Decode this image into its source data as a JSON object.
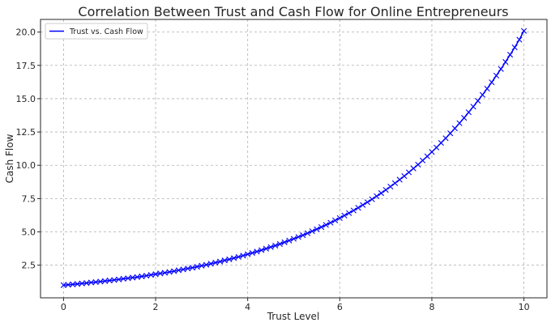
{
  "chart_data": {
    "type": "line",
    "title": "Correlation Between Trust and Cash Flow for Online Entrepreneurs",
    "xlabel": "Trust Level",
    "ylabel": "Cash Flow",
    "xlim": [
      -0.5,
      10.5
    ],
    "ylim": [
      0.05,
      20.95
    ],
    "x_ticks": [
      0,
      2,
      4,
      6,
      8,
      10
    ],
    "x_tick_labels": [
      "0",
      "2",
      "4",
      "6",
      "8",
      "10"
    ],
    "y_ticks": [
      2.5,
      5.0,
      7.5,
      10.0,
      12.5,
      15.0,
      17.5,
      20.0
    ],
    "y_tick_labels": [
      "2.5",
      "5.0",
      "7.5",
      "10.0",
      "12.5",
      "15.0",
      "17.5",
      "20.0"
    ],
    "grid": true,
    "legend_position": "top-left",
    "series": [
      {
        "name": "Trust vs. Cash Flow",
        "color": "#0000ff",
        "marker": "x",
        "x": [
          0.0,
          0.1,
          0.2,
          0.3,
          0.4,
          0.5,
          0.6,
          0.7,
          0.8,
          0.9,
          1.0,
          1.1,
          1.2,
          1.3,
          1.4,
          1.5,
          1.6,
          1.7,
          1.8,
          1.9,
          2.0,
          2.1,
          2.2,
          2.3,
          2.4,
          2.5,
          2.6,
          2.7,
          2.8,
          2.9,
          3.0,
          3.1,
          3.2,
          3.3,
          3.4,
          3.5,
          3.6,
          3.7,
          3.8,
          3.9,
          4.0,
          4.1,
          4.2,
          4.3,
          4.4,
          4.5,
          4.6,
          4.7,
          4.8,
          4.9,
          5.0,
          5.1,
          5.2,
          5.3,
          5.4,
          5.5,
          5.6,
          5.7,
          5.8,
          5.9,
          6.0,
          6.1,
          6.2,
          6.3,
          6.4,
          6.5,
          6.6,
          6.7,
          6.8,
          6.9,
          7.0,
          7.1,
          7.2,
          7.3,
          7.4,
          7.5,
          7.6,
          7.7,
          7.8,
          7.9,
          8.0,
          8.1,
          8.2,
          8.3,
          8.4,
          8.5,
          8.6,
          8.7,
          8.8,
          8.9,
          9.0,
          9.1,
          9.2,
          9.3,
          9.4,
          9.5,
          9.6,
          9.7,
          9.8,
          9.9,
          10.0
        ],
        "y": [
          1.0,
          1.03,
          1.06,
          1.09,
          1.13,
          1.16,
          1.2,
          1.23,
          1.27,
          1.31,
          1.35,
          1.39,
          1.43,
          1.48,
          1.52,
          1.57,
          1.61,
          1.66,
          1.71,
          1.77,
          1.82,
          1.88,
          1.93,
          1.99,
          2.05,
          2.12,
          2.18,
          2.25,
          2.31,
          2.38,
          2.46,
          2.53,
          2.61,
          2.69,
          2.77,
          2.86,
          2.94,
          3.03,
          3.12,
          3.22,
          3.32,
          3.42,
          3.52,
          3.63,
          3.74,
          3.86,
          3.97,
          4.09,
          4.22,
          4.35,
          4.48,
          4.62,
          4.75,
          4.9,
          5.05,
          5.2,
          5.36,
          5.52,
          5.69,
          5.86,
          6.04,
          6.23,
          6.41,
          6.61,
          6.81,
          7.02,
          7.23,
          7.45,
          7.68,
          7.91,
          8.15,
          8.4,
          8.66,
          8.92,
          9.19,
          9.47,
          9.76,
          10.05,
          10.36,
          10.67,
          11.0,
          11.33,
          11.68,
          12.03,
          12.4,
          12.77,
          13.16,
          13.56,
          13.98,
          14.4,
          14.84,
          15.29,
          15.75,
          16.23,
          16.73,
          17.23,
          17.76,
          18.3,
          18.85,
          19.43,
          20.09
        ]
      }
    ]
  }
}
